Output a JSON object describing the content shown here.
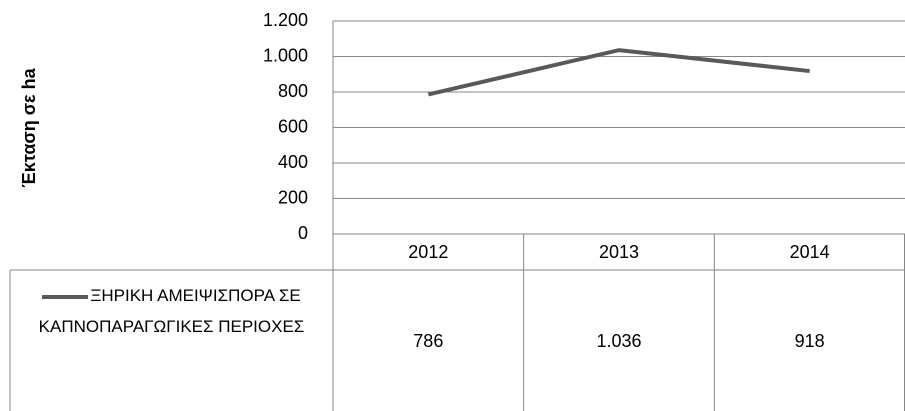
{
  "chart_data": {
    "type": "line",
    "y_label": "Έκταση σε ha",
    "categories": [
      "2012",
      "2013",
      "2014"
    ],
    "series": [
      {
        "name": "ΞΗΡΙΚΗ ΑΜΕΙΨΙΣΠΟΡΑ ΣΕ ΚΑΠΝΟΠΑΡΑΓΩΓΙΚΕΣ ΠΕΡΙΟΧΕΣ",
        "color": "#595959",
        "values": [
          786,
          1036,
          918
        ],
        "value_labels": [
          "786",
          "1.036",
          "918"
        ]
      }
    ],
    "ylim": [
      0,
      1200
    ],
    "yticks": [
      0,
      200,
      400,
      600,
      800,
      {
        "value": 1000,
        "label": "1.000"
      },
      {
        "value": 1200,
        "label": "1.200"
      }
    ],
    "grid": true,
    "data_table": true
  }
}
